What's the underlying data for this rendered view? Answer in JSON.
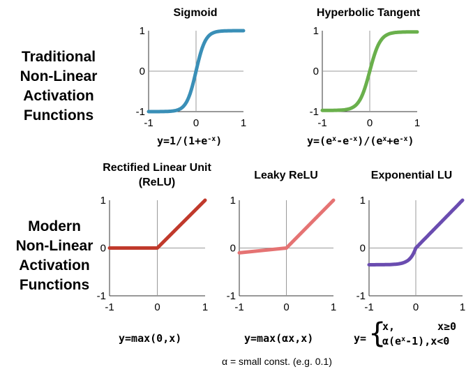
{
  "sections": {
    "traditional": [
      "Traditional",
      "Non-Linear",
      "Activation",
      "Functions"
    ],
    "modern": [
      "Modern",
      "Non-Linear",
      "Activation",
      "Functions"
    ]
  },
  "charts": {
    "sigmoid": {
      "title": "Sigmoid",
      "color": "#3a8fb7"
    },
    "tanh": {
      "title": "Hyperbolic Tangent",
      "color": "#6ab04c"
    },
    "relu": {
      "title_line1": "Rectified Linear Unit",
      "title_line2": "(ReLU)",
      "color": "#c0392b"
    },
    "leaky": {
      "title": "Leaky ReLU",
      "color": "#e57373"
    },
    "elu": {
      "title": "Exponential LU",
      "color": "#6a4cb0"
    }
  },
  "formulas": {
    "sigmoid": {
      "prefix": "y=1/(1+e",
      "sup": "-x",
      "suffix": ")"
    },
    "tanh": {
      "p1": "y=(e",
      "s1": "x",
      "p2": "-e",
      "s2": "-x",
      "p3": ")/(e",
      "s3": "x",
      "p4": "+e",
      "s4": "-x",
      "p5": ")"
    },
    "relu": "y=max(0,x)",
    "leaky": "y=max(αx,x)",
    "elu": {
      "prefix": "y=",
      "case1_expr": "x,",
      "case1_cond": "x≥0",
      "case2_pre": "α(e",
      "case2_sup": "x",
      "case2_post": "-1),x<0"
    }
  },
  "note": "α = small const. (e.g. 0.1)",
  "ticks": {
    "neg": "-1",
    "zero": "0",
    "pos": "1"
  },
  "chart_data": [
    {
      "type": "line",
      "title": "Sigmoid",
      "xlim": [
        -1,
        1
      ],
      "ylim": [
        -1,
        1
      ],
      "fn": "sigmoid"
    },
    {
      "type": "line",
      "title": "Hyperbolic Tangent",
      "xlim": [
        -1,
        1
      ],
      "ylim": [
        -1,
        1
      ],
      "fn": "tanh"
    },
    {
      "type": "line",
      "title": "Rectified Linear Unit (ReLU)",
      "xlim": [
        -1,
        1
      ],
      "ylim": [
        -1,
        1
      ],
      "x": [
        -1,
        0,
        1
      ],
      "y": [
        0,
        0,
        1
      ]
    },
    {
      "type": "line",
      "title": "Leaky ReLU",
      "xlim": [
        -1,
        1
      ],
      "ylim": [
        -1,
        1
      ],
      "x": [
        -1,
        0,
        1
      ],
      "y": [
        -0.1,
        0,
        1
      ]
    },
    {
      "type": "line",
      "title": "Exponential LU",
      "xlim": [
        -1,
        1
      ],
      "ylim": [
        -1,
        1
      ],
      "fn": "elu"
    }
  ]
}
